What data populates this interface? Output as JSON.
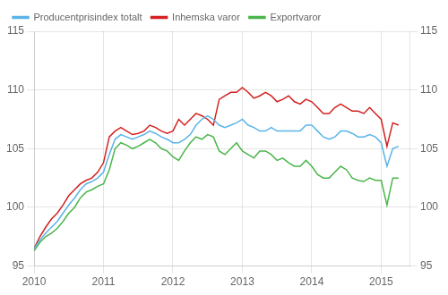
{
  "chart_data": {
    "type": "line",
    "title": "",
    "x": [
      2010,
      2010.0833,
      2010.1667,
      2010.25,
      2010.3333,
      2010.4167,
      2010.5,
      2010.5833,
      2010.6667,
      2010.75,
      2010.8333,
      2010.9167,
      2011,
      2011.0833,
      2011.1667,
      2011.25,
      2011.3333,
      2011.4167,
      2011.5,
      2011.5833,
      2011.6667,
      2011.75,
      2011.8333,
      2011.9167,
      2012,
      2012.0833,
      2012.1667,
      2012.25,
      2012.3333,
      2012.4167,
      2012.5,
      2012.5833,
      2012.6667,
      2012.75,
      2012.8333,
      2012.9167,
      2013,
      2013.0833,
      2013.1667,
      2013.25,
      2013.3333,
      2013.4167,
      2013.5,
      2013.5833,
      2013.6667,
      2013.75,
      2013.8333,
      2013.9167,
      2014,
      2014.0833,
      2014.1667,
      2014.25,
      2014.3333,
      2014.4167,
      2014.5,
      2014.5833,
      2014.6667,
      2014.75,
      2014.8333,
      2014.9167,
      2015,
      2015.0833,
      2015.1667,
      2015.25
    ],
    "series": [
      {
        "name": "Producentprisindex totalt",
        "color": "#5ab4e8",
        "values": [
          96.5,
          97.2,
          97.8,
          98.3,
          98.8,
          99.5,
          100.2,
          100.8,
          101.5,
          102.0,
          102.2,
          102.5,
          103.0,
          104.5,
          105.8,
          106.2,
          106.0,
          105.8,
          106.0,
          106.2,
          106.5,
          106.3,
          106.0,
          105.8,
          105.5,
          105.5,
          105.8,
          106.2,
          107.0,
          107.5,
          107.8,
          107.5,
          107.0,
          106.8,
          107.0,
          107.2,
          107.5,
          107.0,
          106.8,
          106.5,
          106.5,
          106.8,
          106.5,
          106.5,
          106.5,
          106.5,
          106.5,
          107.0,
          107.0,
          106.5,
          106.0,
          105.8,
          106.0,
          106.5,
          106.5,
          106.3,
          106.0,
          106.0,
          106.2,
          106.0,
          105.5,
          103.5,
          105.0,
          105.2
        ]
      },
      {
        "name": "Inhemska varor",
        "color": "#d42020",
        "values": [
          96.5,
          97.5,
          98.3,
          99.0,
          99.5,
          100.2,
          101.0,
          101.5,
          102.0,
          102.3,
          102.5,
          103.0,
          103.8,
          106.0,
          106.5,
          106.8,
          106.5,
          106.2,
          106.3,
          106.5,
          107.0,
          106.8,
          106.5,
          106.3,
          106.5,
          107.5,
          107.0,
          107.5,
          108.0,
          107.8,
          107.5,
          107.0,
          109.2,
          109.5,
          109.8,
          109.8,
          110.2,
          109.8,
          109.3,
          109.5,
          109.8,
          109.5,
          109.0,
          109.2,
          109.5,
          109.0,
          108.8,
          109.2,
          109.0,
          108.5,
          108.0,
          108.0,
          108.5,
          108.8,
          108.5,
          108.2,
          108.2,
          108.0,
          108.5,
          108.0,
          107.5,
          105.2,
          107.2,
          107.0
        ]
      },
      {
        "name": "Exportvaror",
        "color": "#4ab54a",
        "values": [
          96.3,
          97.0,
          97.5,
          97.8,
          98.2,
          98.8,
          99.5,
          100.0,
          100.8,
          101.3,
          101.5,
          101.8,
          102.0,
          103.2,
          105.0,
          105.5,
          105.3,
          105.0,
          105.2,
          105.5,
          105.8,
          105.5,
          105.0,
          104.8,
          104.3,
          104.0,
          104.8,
          105.5,
          106.0,
          105.8,
          106.2,
          106.0,
          104.8,
          104.5,
          105.0,
          105.5,
          104.8,
          104.5,
          104.2,
          104.8,
          104.8,
          104.5,
          104.0,
          104.2,
          103.8,
          103.5,
          103.5,
          104.0,
          103.5,
          102.8,
          102.5,
          102.5,
          103.0,
          103.5,
          103.2,
          102.5,
          102.3,
          102.2,
          102.5,
          102.3,
          102.3,
          100.2,
          102.5,
          102.5
        ]
      }
    ],
    "xlim": [
      2010.0,
      2015.42
    ],
    "xticks": [
      2010,
      2011,
      2012,
      2013,
      2014,
      2015
    ],
    "ylim": [
      95,
      115
    ],
    "yticks": [
      95,
      100,
      105,
      110,
      115
    ],
    "y2lim": [
      95,
      115
    ],
    "y2ticks": [
      95,
      100,
      105,
      110,
      115
    ],
    "grid": true,
    "legend": "upper left"
  }
}
